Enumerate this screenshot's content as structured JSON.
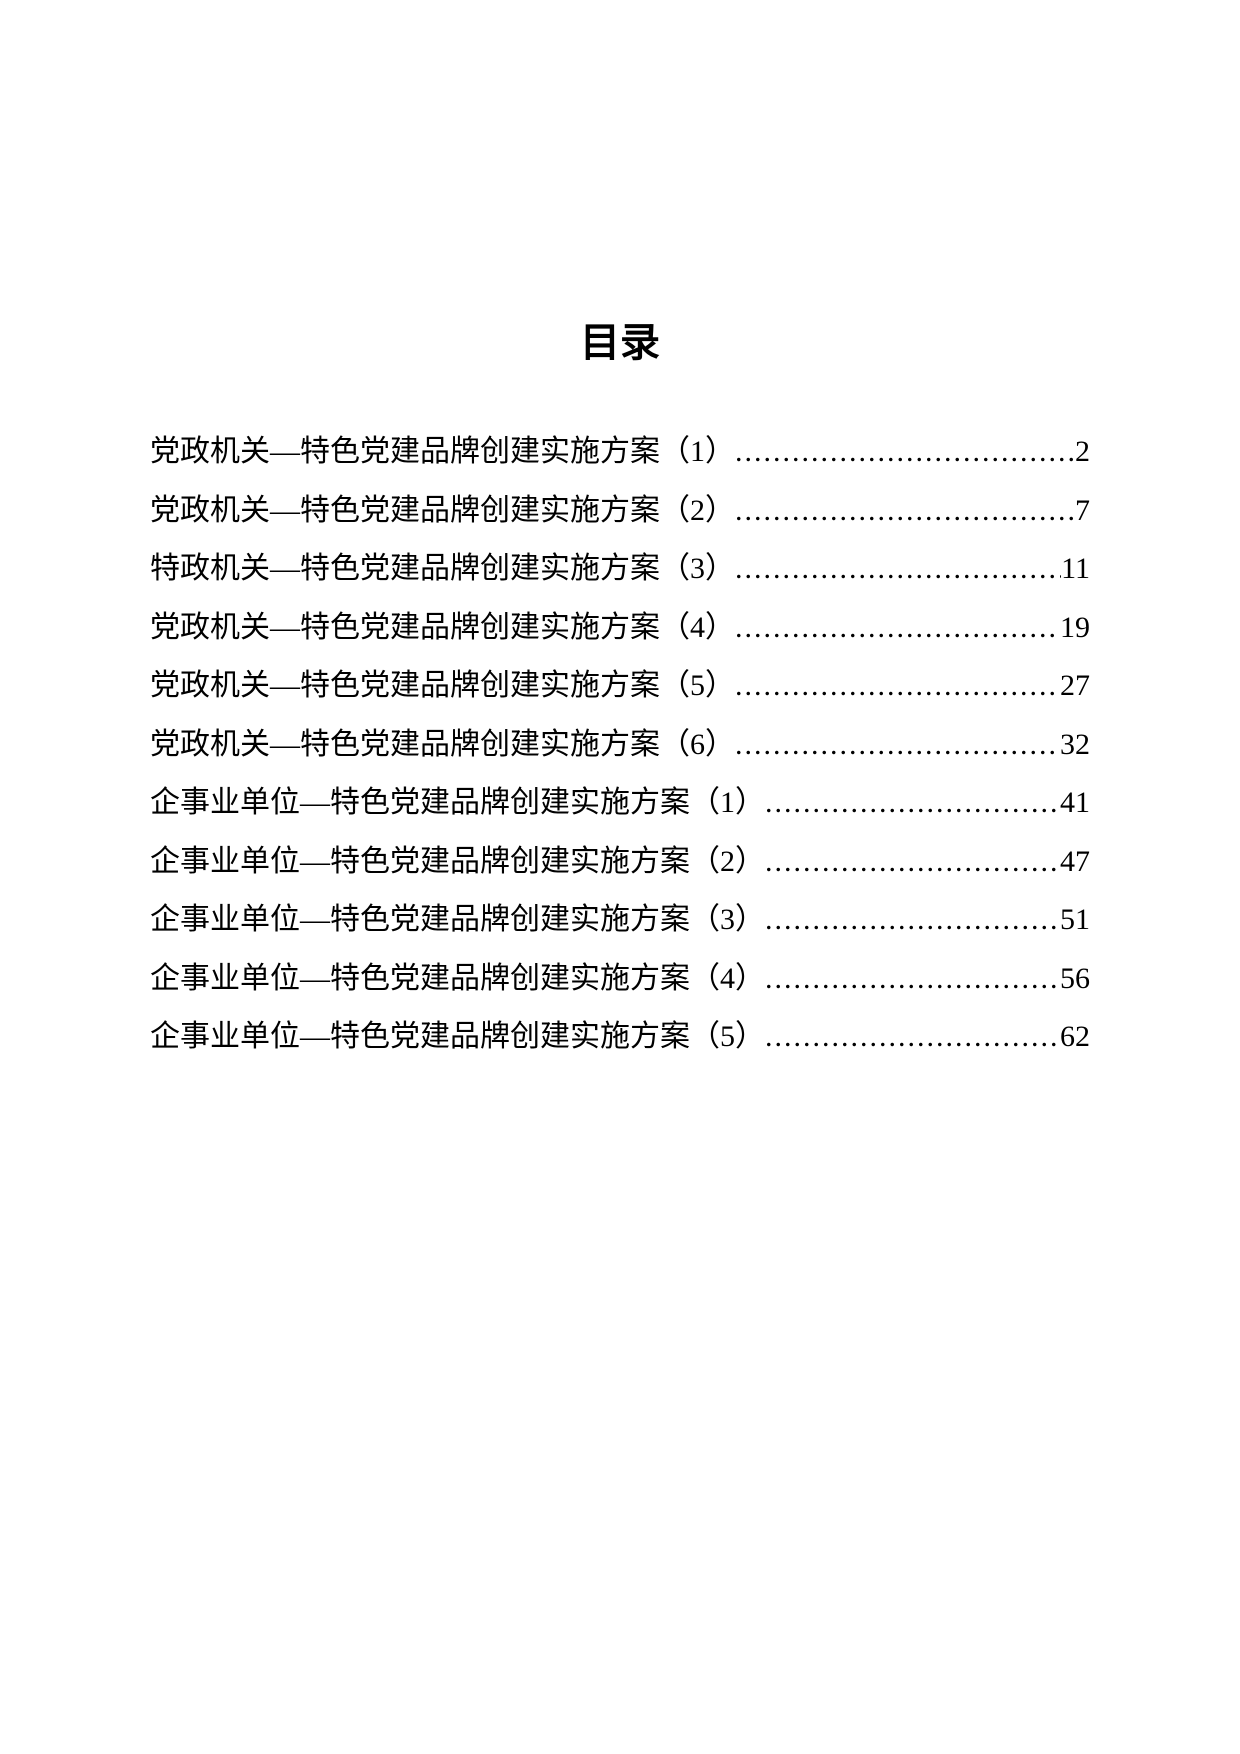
{
  "toc": {
    "title": "目录",
    "title_fontsize": 40,
    "entry_fontsize": 30,
    "text_color": "#000000",
    "background_color": "#ffffff",
    "entries": [
      {
        "title": "党政机关—特色党建品牌创建实施方案（1）",
        "page": "2"
      },
      {
        "title": "党政机关—特色党建品牌创建实施方案（2）",
        "page": "7"
      },
      {
        "title": "特政机关—特色党建品牌创建实施方案（3）",
        "page": "11"
      },
      {
        "title": "党政机关—特色党建品牌创建实施方案（4）",
        "page": "19"
      },
      {
        "title": "党政机关—特色党建品牌创建实施方案（5）",
        "page": "27"
      },
      {
        "title": "党政机关—特色党建品牌创建实施方案（6）",
        "page": "32"
      },
      {
        "title": "企事业单位—特色党建品牌创建实施方案（1）",
        "page": "41"
      },
      {
        "title": "企事业单位—特色党建品牌创建实施方案（2）",
        "page": "47"
      },
      {
        "title": "企事业单位—特色党建品牌创建实施方案（3）",
        "page": "51"
      },
      {
        "title": "企事业单位—特色党建品牌创建实施方案（4）",
        "page": "56"
      },
      {
        "title": "企事业单位—特色党建品牌创建实施方案（5）",
        "page": "62"
      }
    ]
  }
}
